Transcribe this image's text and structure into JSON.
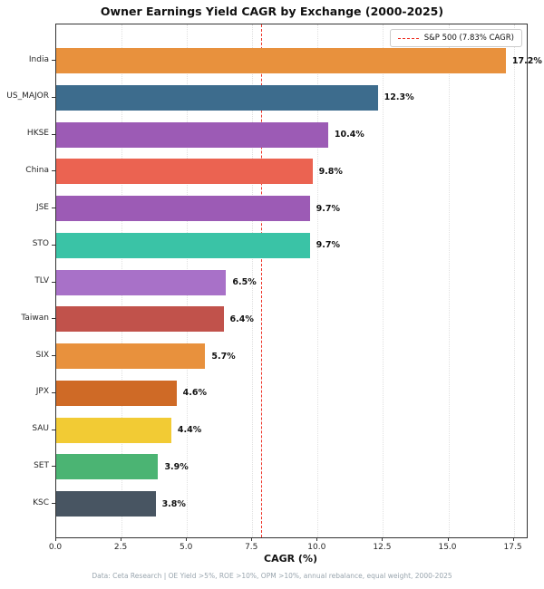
{
  "title": "Owner Earnings Yield CAGR by Exchange (2000-2025)",
  "legend": {
    "label": "S&P 500 (7.83% CAGR)",
    "line_color": "#ee3226"
  },
  "footer": "Data: Ceta Research | OE Yield >5%, ROE >10%, OPM >10%, annual rebalance, equal weight, 2000-2025",
  "chart_data": {
    "type": "bar",
    "orientation": "horizontal",
    "title": "Owner Earnings Yield CAGR by Exchange (2000-2025)",
    "xlabel": "CAGR (%)",
    "ylabel": "",
    "categories": [
      "India",
      "US_MAJOR",
      "HKSE",
      "China",
      "JSE",
      "STO",
      "TLV",
      "Taiwan",
      "SIX",
      "JPX",
      "SAU",
      "SET",
      "KSC"
    ],
    "values": [
      17.2,
      12.3,
      10.4,
      9.8,
      9.7,
      9.7,
      6.5,
      6.4,
      5.7,
      4.6,
      4.4,
      3.9,
      3.8
    ],
    "value_labels": [
      "17.2%",
      "12.3%",
      "10.4%",
      "9.8%",
      "9.7%",
      "9.7%",
      "6.5%",
      "6.4%",
      "5.7%",
      "4.6%",
      "4.4%",
      "3.9%",
      "3.8%"
    ],
    "bar_colors": [
      "#e8913d",
      "#3d6c8d",
      "#9c5bb5",
      "#eb6351",
      "#9c5bb5",
      "#3ac3a6",
      "#a871c8",
      "#c1524b",
      "#e8913d",
      "#cf6a26",
      "#f2cb34",
      "#4bb473",
      "#485562"
    ],
    "xlim": [
      0,
      18
    ],
    "xticks": [
      0.0,
      2.5,
      5.0,
      7.5,
      10.0,
      12.5,
      15.0,
      17.5
    ],
    "xtick_labels": [
      "0.0",
      "2.5",
      "5.0",
      "7.5",
      "10.0",
      "12.5",
      "15.0",
      "17.5"
    ],
    "benchmark": {
      "name": "S&P 500",
      "value": 7.83,
      "label": "S&P 500 (7.83% CAGR)",
      "style": "red-dashed-vertical"
    },
    "grid": "vertical-dotted",
    "legend_position": "upper-right"
  }
}
